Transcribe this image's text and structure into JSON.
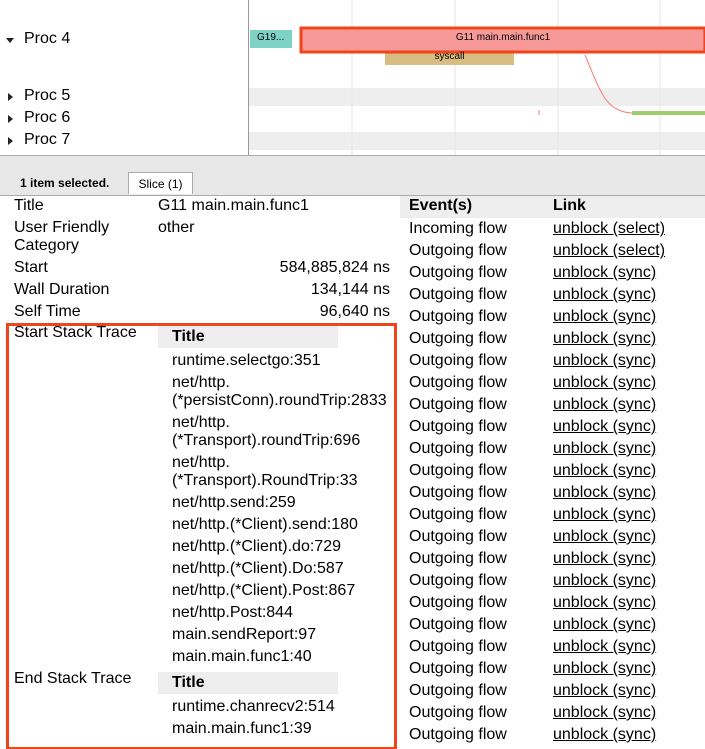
{
  "timeline": {
    "procs": [
      "Proc 4",
      "Proc 5",
      "Proc 6",
      "Proc 7"
    ],
    "slices": [
      "G19...",
      "G11 main.main.func1",
      "syscall"
    ]
  },
  "tabs": {
    "status": "1 item selected.",
    "tab": "Slice (1)"
  },
  "details": {
    "rows": [
      [
        "Title",
        "G11 main.main.func1"
      ],
      [
        "User Friendly Category",
        "other"
      ],
      [
        "Start",
        "584,885,824 ns"
      ],
      [
        "Wall Duration",
        "134,144 ns"
      ],
      [
        "Self Time",
        "96,640 ns"
      ]
    ]
  },
  "start_stack": {
    "label": "Start Stack Trace",
    "header": "Title",
    "frames": [
      "runtime.selectgo:351",
      "net/http.(*persistConn).roundTrip:2833",
      "net/http.(*Transport).roundTrip:696",
      "net/http.(*Transport).RoundTrip:33",
      "net/http.send:259",
      "net/http.(*Client).send:180",
      "net/http.(*Client).do:729",
      "net/http.(*Client).Do:587",
      "net/http.(*Client).Post:867",
      "net/http.Post:844",
      "main.sendReport:97",
      "main.main.func1:40"
    ]
  },
  "end_stack": {
    "label": "End Stack Trace",
    "header": "Title",
    "frames": [
      "runtime.chanrecv2:514",
      "main.main.func1:39"
    ]
  },
  "events": {
    "headers": [
      "Event(s)",
      "Link"
    ],
    "rows": [
      [
        "Incoming flow",
        "unblock (select)"
      ],
      [
        "Outgoing flow",
        "unblock (select)"
      ],
      [
        "Outgoing flow",
        "unblock (sync)"
      ],
      [
        "Outgoing flow",
        "unblock (sync)"
      ],
      [
        "Outgoing flow",
        "unblock (sync)"
      ],
      [
        "Outgoing flow",
        "unblock (sync)"
      ],
      [
        "Outgoing flow",
        "unblock (sync)"
      ],
      [
        "Outgoing flow",
        "unblock (sync)"
      ],
      [
        "Outgoing flow",
        "unblock (sync)"
      ],
      [
        "Outgoing flow",
        "unblock (sync)"
      ],
      [
        "Outgoing flow",
        "unblock (sync)"
      ],
      [
        "Outgoing flow",
        "unblock (sync)"
      ],
      [
        "Outgoing flow",
        "unblock (sync)"
      ],
      [
        "Outgoing flow",
        "unblock (sync)"
      ],
      [
        "Outgoing flow",
        "unblock (sync)"
      ],
      [
        "Outgoing flow",
        "unblock (sync)"
      ],
      [
        "Outgoing flow",
        "unblock (sync)"
      ],
      [
        "Outgoing flow",
        "unblock (sync)"
      ],
      [
        "Outgoing flow",
        "unblock (sync)"
      ],
      [
        "Outgoing flow",
        "unblock (sync)"
      ],
      [
        "Outgoing flow",
        "unblock (sync)"
      ],
      [
        "Outgoing flow",
        "unblock (sync)"
      ],
      [
        "Outgoing flow",
        "unblock (sync)"
      ],
      [
        "Outgoing flow",
        "unblock (sync)"
      ]
    ]
  }
}
